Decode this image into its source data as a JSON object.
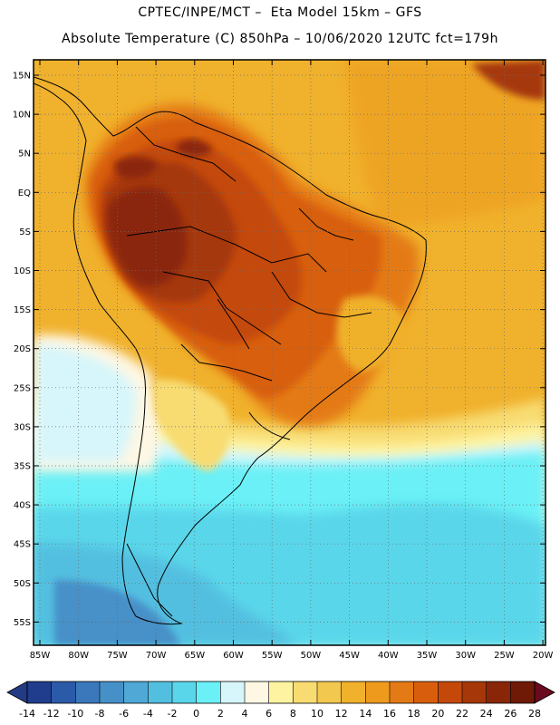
{
  "title_line1": "CPTEC/INPE/MCT –  Eta Model 15km – GFS",
  "title_line2": "Absolute Temperature (C) 850hPa – 10/06/2020 12UTC fct=179h",
  "latitude_labels": [
    "15N",
    "10N",
    "5N",
    "EQ",
    "5S",
    "10S",
    "15S",
    "20S",
    "25S",
    "30S",
    "35S",
    "40S",
    "45S",
    "50S",
    "55S"
  ],
  "longitude_labels": [
    "85W",
    "80W",
    "75W",
    "70W",
    "65W",
    "60W",
    "55W",
    "50W",
    "45W",
    "40W",
    "35W",
    "30W",
    "25W",
    "20W"
  ],
  "colorbar": {
    "ticks": [
      "-14",
      "-12",
      "-10",
      "-8",
      "-6",
      "-4",
      "-2",
      "0",
      "2",
      "4",
      "6",
      "8",
      "10",
      "12",
      "14",
      "16",
      "18",
      "20",
      "22",
      "24",
      "26",
      "28"
    ],
    "colors": [
      "#1f3d8c",
      "#2b5aa8",
      "#3a78bb",
      "#4690c8",
      "#4fa8d6",
      "#52bfe0",
      "#5ad6ea",
      "#6af0f6",
      "#d6f6fb",
      "#fef7e4",
      "#fef3a0",
      "#f8dc72",
      "#f3c84e",
      "#f0b12c",
      "#ee9a1d",
      "#e47a15",
      "#d85e0e",
      "#c4480a",
      "#a63708",
      "#8a2608",
      "#6e1a06"
    ],
    "under_color": "#233a85",
    "over_color": "#6a0a1f"
  }
}
